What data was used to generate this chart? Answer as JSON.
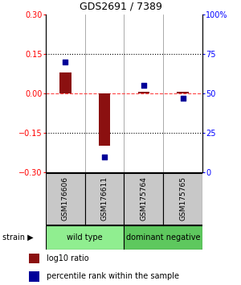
{
  "title": "GDS2691 / 7389",
  "samples": [
    "GSM176606",
    "GSM176611",
    "GSM175764",
    "GSM175765"
  ],
  "log10_ratio": [
    0.08,
    -0.2,
    0.005,
    0.005
  ],
  "percentile_rank": [
    70,
    10,
    55,
    47
  ],
  "groups": [
    {
      "label": "wild type",
      "samples": [
        0,
        1
      ],
      "color": "#90EE90"
    },
    {
      "label": "dominant negative",
      "samples": [
        2,
        3
      ],
      "color": "#66CD66"
    }
  ],
  "ylim_left": [
    -0.3,
    0.3
  ],
  "ylim_right": [
    0,
    100
  ],
  "yticks_left": [
    -0.3,
    -0.15,
    0,
    0.15,
    0.3
  ],
  "yticks_right": [
    0,
    25,
    50,
    75,
    100
  ],
  "bar_color": "#8B1010",
  "dot_color": "#000099",
  "hline_color": "#FF4444",
  "grid_color": "#000000",
  "sample_box_color": "#C8C8C8",
  "wt_color": "#90EE90",
  "dn_color": "#5EC85E",
  "legend_bar_label": "log10 ratio",
  "legend_dot_label": "percentile rank within the sample",
  "strain_label": "strain"
}
